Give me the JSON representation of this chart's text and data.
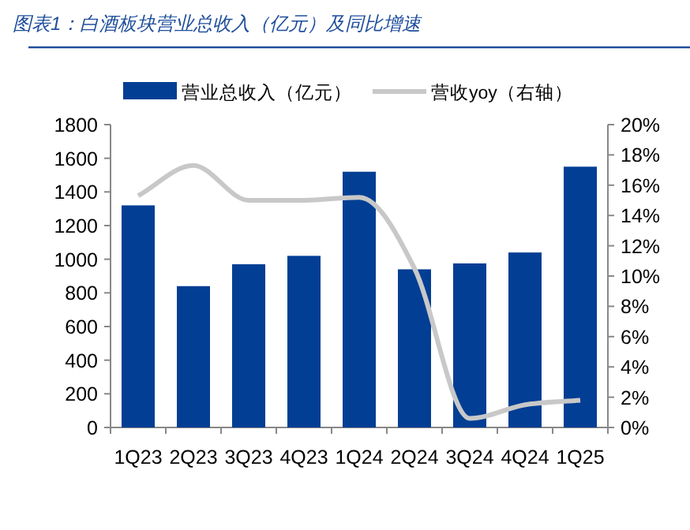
{
  "chart_data": {
    "type": "bar",
    "title": "图表1：白酒板块营业总收入（亿元）及同比增速",
    "categories": [
      "1Q23",
      "2Q23",
      "3Q23",
      "4Q23",
      "1Q24",
      "2Q24",
      "3Q24",
      "4Q24",
      "1Q25"
    ],
    "series": [
      {
        "name": "营业总收入（亿元）",
        "color": "#023e94",
        "values": [
          1320,
          840,
          970,
          1020,
          1520,
          940,
          975,
          1040,
          1550
        ]
      },
      {
        "name": "营收yoy（右轴）",
        "type": "line",
        "axis": "y2",
        "color": "#c8c8c8",
        "marker": "none",
        "values": [
          15.3,
          17.3,
          15.0,
          15.0,
          15.2,
          10.5,
          0.6,
          1.5,
          1.8
        ]
      }
    ],
    "ylim": [
      0,
      1800
    ],
    "yticks": [
      0,
      200,
      400,
      600,
      800,
      1000,
      1200,
      1400,
      1600,
      1800
    ],
    "y2lim": [
      0,
      20
    ],
    "y2ticks": [
      {
        "value": 0,
        "label": "0%"
      },
      {
        "value": 2,
        "label": "2%"
      },
      {
        "value": 4,
        "label": "4%"
      },
      {
        "value": 6,
        "label": "6%"
      },
      {
        "value": 8,
        "label": "8%"
      },
      {
        "value": 10,
        "label": "10%"
      },
      {
        "value": 12,
        "label": "12%"
      },
      {
        "value": 14,
        "label": "14%"
      },
      {
        "value": 16,
        "label": "16%"
      },
      {
        "value": 18,
        "label": "18%"
      },
      {
        "value": 20,
        "label": "20%"
      }
    ],
    "legend": "top",
    "grid": false
  }
}
